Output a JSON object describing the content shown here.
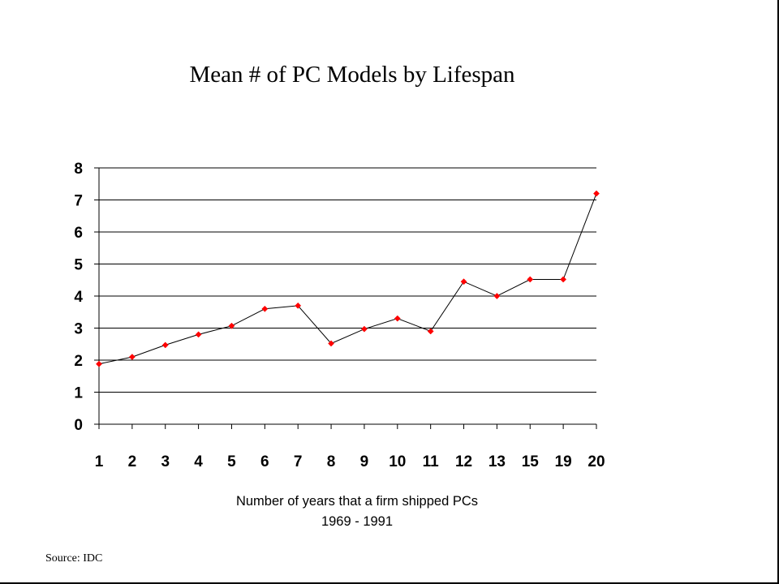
{
  "chart_data": {
    "type": "line",
    "title": "Mean # of PC Models by Lifespan",
    "xlabel": [
      "Number of years that a firm shipped PCs",
      "1969 - 1991"
    ],
    "ylabel": "",
    "categories": [
      "1",
      "2",
      "3",
      "4",
      "5",
      "6",
      "7",
      "8",
      "9",
      "10",
      "11",
      "12",
      "13",
      "15",
      "19",
      "20"
    ],
    "series": [
      {
        "values": [
          1.88,
          2.1,
          2.47,
          2.8,
          3.07,
          3.6,
          3.7,
          2.52,
          2.97,
          3.3,
          2.9,
          4.45,
          4.0,
          4.52,
          4.52,
          7.2
        ]
      }
    ],
    "ylim": [
      0,
      8
    ],
    "yticks": [
      "0",
      "1",
      "2",
      "3",
      "4",
      "5",
      "6",
      "7",
      "8"
    ],
    "grid": "horizontal",
    "colors": {
      "line": "#000000",
      "marker": "#ff0000",
      "gridline": "#000000"
    }
  },
  "footer": {
    "source": "Source:  IDC"
  }
}
